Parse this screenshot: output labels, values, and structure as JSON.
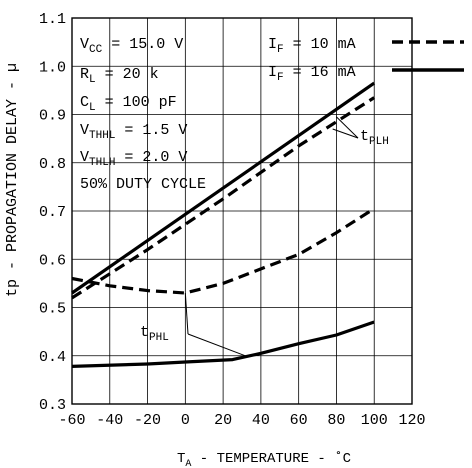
{
  "chart_data": {
    "type": "line",
    "xlabel": "T",
    "xlabel_sub": "A",
    "xlabel_rest": " - TEMPERATURE - ˚C",
    "ylabel": "tp - PROPAGATION DELAY - µ",
    "xlim": [
      -60,
      120
    ],
    "ylim": [
      0.3,
      1.1
    ],
    "xticks": [
      -60,
      -40,
      -20,
      0,
      20,
      40,
      60,
      80,
      100,
      120
    ],
    "yticks": [
      0.3,
      0.4,
      0.5,
      0.6,
      0.7,
      0.8,
      0.9,
      1.0,
      1.1
    ],
    "xtick_labels": [
      "-60",
      "-40",
      "-20",
      "0",
      "20",
      "40",
      "60",
      "80",
      "100",
      "120"
    ],
    "ytick_labels": [
      "0.3",
      "0.4",
      "0.5",
      "0.6",
      "0.7",
      "0.8",
      "0.9",
      "1.0",
      "1.1"
    ],
    "grid": true,
    "conditions": [
      {
        "main": "V",
        "sub": "CC",
        "rest": " = 15.0 V"
      },
      {
        "main": "R",
        "sub": "L",
        "rest": " = 20 k"
      },
      {
        "main": "C",
        "sub": "L",
        "rest": " = 100 pF"
      },
      {
        "main": "V",
        "sub": "THHL",
        "rest": " = 1.5 V"
      },
      {
        "main": "V",
        "sub": "THLH",
        "rest": " = 2.0 V"
      },
      {
        "main": "50% DUTY CYCLE",
        "sub": "",
        "rest": ""
      }
    ],
    "legend": [
      {
        "main": "I",
        "sub": "F",
        "rest": " = 10 mA",
        "style": "dashed"
      },
      {
        "main": "I",
        "sub": "F",
        "rest": " = 16 mA",
        "style": "solid"
      }
    ],
    "annotations": [
      {
        "main": "t",
        "sub": "PLH"
      },
      {
        "main": "t",
        "sub": "PHL"
      }
    ],
    "series": [
      {
        "curve": "tPLH",
        "style": "solid",
        "x": [
          -60,
          100
        ],
        "y": [
          0.53,
          0.965
        ]
      },
      {
        "curve": "tPLH",
        "style": "dashed",
        "x": [
          -60,
          -20,
          20,
          60,
          100
        ],
        "y": [
          0.52,
          0.62,
          0.725,
          0.835,
          0.935
        ]
      },
      {
        "curve": "tPHL",
        "style": "dashed",
        "x": [
          -60,
          -40,
          -20,
          0,
          20,
          40,
          60,
          80,
          100
        ],
        "y": [
          0.56,
          0.545,
          0.535,
          0.53,
          0.55,
          0.58,
          0.61,
          0.655,
          0.705
        ]
      },
      {
        "curve": "tPHL",
        "style": "solid",
        "x": [
          -60,
          -20,
          0,
          25,
          40,
          60,
          80,
          100
        ],
        "y": [
          0.378,
          0.383,
          0.387,
          0.392,
          0.405,
          0.425,
          0.443,
          0.47
        ]
      }
    ]
  }
}
